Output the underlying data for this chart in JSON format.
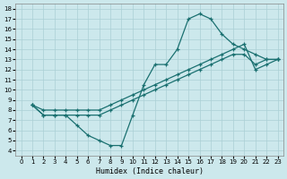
{
  "bg_color": "#cce8ec",
  "line_color": "#1a7070",
  "grid_color": "#aacfd4",
  "xlabel": "Humidex (Indice chaleur)",
  "xlim": [
    -0.5,
    23.5
  ],
  "ylim": [
    3.5,
    18.5
  ],
  "xticks": [
    0,
    1,
    2,
    3,
    4,
    5,
    6,
    7,
    8,
    9,
    10,
    11,
    12,
    13,
    14,
    15,
    16,
    17,
    18,
    19,
    20,
    21,
    22,
    23
  ],
  "yticks": [
    4,
    5,
    6,
    7,
    8,
    9,
    10,
    11,
    12,
    13,
    14,
    15,
    16,
    17,
    18
  ],
  "line1": {
    "x": [
      1,
      2,
      3,
      4,
      5,
      6,
      7,
      8,
      9,
      10,
      11,
      12,
      13,
      14,
      15,
      16,
      17,
      18,
      19,
      20,
      21,
      22,
      23
    ],
    "y": [
      8.5,
      7.5,
      7.5,
      7.5,
      6.5,
      5.5,
      5.0,
      4.5,
      4.5,
      7.5,
      10.5,
      12.5,
      12.5,
      14.0,
      17.0,
      17.5,
      17.0,
      15.5,
      14.5,
      14.0,
      13.5,
      13.0,
      13.0
    ]
  },
  "line2": {
    "x": [
      1,
      2,
      3,
      4,
      5,
      6,
      7,
      8,
      9,
      10,
      11,
      12,
      13,
      14,
      15,
      16,
      17,
      18,
      19,
      20,
      21,
      22,
      23
    ],
    "y": [
      8.5,
      8.0,
      8.0,
      8.0,
      8.0,
      8.0,
      8.0,
      8.5,
      9.0,
      9.5,
      10.0,
      10.5,
      11.0,
      11.5,
      12.0,
      12.5,
      13.0,
      13.5,
      14.0,
      14.5,
      12.0,
      12.5,
      13.0
    ]
  },
  "line3": {
    "x": [
      1,
      2,
      3,
      4,
      5,
      6,
      7,
      8,
      9,
      10,
      11,
      12,
      13,
      14,
      15,
      16,
      17,
      18,
      19,
      20,
      21,
      22,
      23
    ],
    "y": [
      8.5,
      7.5,
      7.5,
      7.5,
      7.5,
      7.5,
      7.5,
      8.0,
      8.5,
      9.0,
      9.5,
      10.0,
      10.5,
      11.0,
      11.5,
      12.0,
      12.5,
      13.0,
      13.5,
      13.5,
      12.5,
      13.0,
      13.0
    ]
  }
}
